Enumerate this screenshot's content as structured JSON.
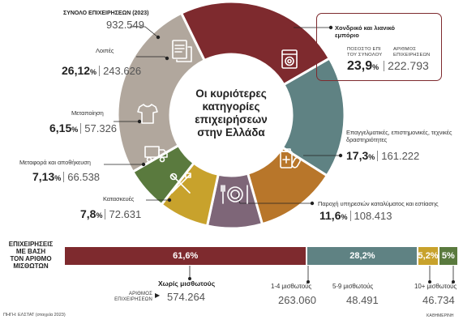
{
  "total": {
    "label": "ΣΥΝΟΛΟ ΕΠΙΧΕΙΡΗΣΕΩΝ (2023)",
    "value": "932.549"
  },
  "center_title": [
    "Οι κυριότερες",
    "κατηγορίες",
    "επιχειρήσεων",
    "στην Ελλάδα"
  ],
  "categories": [
    {
      "label": "Λοιπές",
      "pct": "26,12",
      "value": "243.626",
      "color": "#b1a79d",
      "icon": "document-icon"
    },
    {
      "label": "Μεταποίηση",
      "pct": "6,15",
      "value": "57.326",
      "color": "#5a7a3e",
      "icon": "shirt-icon"
    },
    {
      "label": "Μεταφορά και αποθήκευση",
      "pct": "7,13",
      "value": "66.538",
      "color": "#c8a22c",
      "icon": "truck-icon"
    },
    {
      "label": "Κατασκευές",
      "pct": "7,8",
      "value": "72.631",
      "color": "#7e6678",
      "icon": "tools-icon"
    },
    {
      "label": "Παροχή υπηρεσιών καταλύματος και εστίασης",
      "pct": "11,6",
      "value": "108.413",
      "color": "#b8762a",
      "icon": "plate-icon"
    },
    {
      "label": "Επαγγελματικές, επιστημονικές, τεχνικές δραστηριότητες",
      "pct": "17,3",
      "value": "161.222",
      "color": "#5f8283",
      "icon": "medical-icon"
    },
    {
      "label": "Χονδρικό και λιανικό εμπόριο",
      "pct": "23,9",
      "value": "222.793",
      "color": "#7e2a2e",
      "icon": "washing-machine-icon"
    }
  ],
  "highlight_box": {
    "pct_caption": "ΠΟΣΟΣΤΟ ΕΠΙ ΤΟΥ ΣΥΝΟΛΟΥ",
    "num_caption": "ΑΡΙΘΜΟΣ ΕΠΙΧΕΙΡΗΣΕΩΝ"
  },
  "employees": {
    "title": [
      "ΕΠΙΧΕΙΡΗΣΕΙΣ",
      "ΜΕ ΒΑΣΗ",
      "ΤΟΝ ΑΡΙΘΜΟ",
      "ΜΙΣΘΩΤΩΝ"
    ],
    "count_caption": "ΑΡΙΘΜΟΣ ΕΠΙΧΕΙΡΗΣΕΩΝ",
    "segments": [
      {
        "label": "Χωρίς μισθωτούς",
        "pct": "61,6%",
        "value": "574.264",
        "color": "#7e2a2e"
      },
      {
        "label": "1-4 μισθωτούς",
        "pct": "28,2%",
        "value": "263.060",
        "color": "#5f8283"
      },
      {
        "label": "5-9 μισθωτούς",
        "pct": "5,2%",
        "value": "48.491",
        "color": "#c8a22c"
      },
      {
        "label": "10+ μισθωτούς",
        "pct": "5%",
        "value": "46.734",
        "color": "#5a7a3e"
      }
    ]
  },
  "source": "ΠΗΓΗ: ΕΛΣΤΑΤ (στοιχεία 2023)",
  "credit": "ΚΑΘΗΜΕΡΙΝΗ",
  "chart_data": [
    {
      "type": "pie",
      "title": "Οι κυριότερες κατηγορίες επιχειρήσεων στην Ελλάδα",
      "categories": [
        "Χονδρικό και λιανικό εμπόριο",
        "Επαγγελματικές, επιστημονικές, τεχνικές δραστηριότητες",
        "Παροχή υπηρεσιών καταλύματος και εστίασης",
        "Κατασκευές",
        "Μεταφορά και αποθήκευση",
        "Μεταποίηση",
        "Λοιπές"
      ],
      "values": [
        23.9,
        17.3,
        11.6,
        7.8,
        7.13,
        6.15,
        26.12
      ]
    },
    {
      "type": "bar",
      "title": "ΕΠΙΧΕΙΡΗΣΕΙΣ ΜΕ ΒΑΣΗ ΤΟΝ ΑΡΙΘΜΟ ΜΙΣΘΩΤΩΝ",
      "categories": [
        "Χωρίς μισθωτούς",
        "1-4 μισθωτούς",
        "5-9 μισθωτούς",
        "10+ μισθωτούς"
      ],
      "values": [
        61.6,
        28.2,
        5.2,
        5
      ]
    }
  ]
}
